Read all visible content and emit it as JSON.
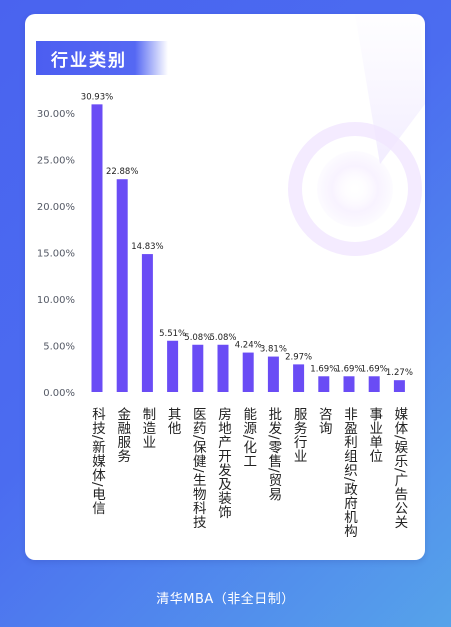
{
  "header": {
    "title": "行业类别"
  },
  "footer": {
    "text": "清华MBA（非全日制）"
  },
  "colors": {
    "bar": "#6a4cf5",
    "accent": "#4c5ef1",
    "tick": "#555a66"
  },
  "chart_data": {
    "type": "bar",
    "title": "行业类别",
    "xlabel": "",
    "ylabel": "",
    "ylim": [
      0,
      35
    ],
    "yticks": [
      0,
      5,
      10,
      15,
      20,
      25,
      30
    ],
    "ytick_labels": [
      "0.00%",
      "5.00%",
      "10.00%",
      "15.00%",
      "20.00%",
      "25.00%",
      "30.00%"
    ],
    "grid": false,
    "categories": [
      "科技/新媒体/电信",
      "金融服务",
      "制造业",
      "其他",
      "医药/保健/生物科技",
      "房地产开发及装饰",
      "能源/化工",
      "批发/零售/贸易",
      "服务行业",
      "咨询",
      "非盈利组织/政府机构",
      "事业单位",
      "媒体/娱乐/广告公关"
    ],
    "values": [
      30.93,
      22.88,
      14.83,
      5.51,
      5.08,
      5.08,
      4.24,
      3.81,
      2.97,
      1.69,
      1.69,
      1.69,
      1.27
    ],
    "value_labels": [
      "30.93%",
      "22.88%",
      "14.83%",
      "5.51%",
      "5.08%",
      "5.08%",
      "4.24%",
      "3.81%",
      "2.97%",
      "1.69%",
      "1.69%",
      "1.69%",
      "1.27%"
    ]
  }
}
